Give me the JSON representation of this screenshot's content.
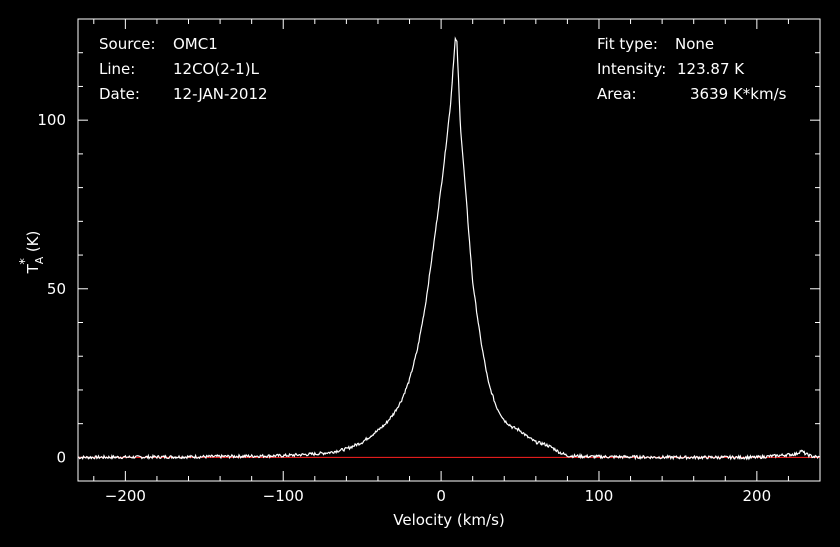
{
  "header": {
    "left": [
      {
        "key": "Source:",
        "value": "OMC1"
      },
      {
        "key": "Line:",
        "value": "12CO(2-1)L"
      },
      {
        "key": "Date:",
        "value": "12-JAN-2012"
      }
    ],
    "right": [
      {
        "key": "Fit type:",
        "value": "None"
      },
      {
        "key": "Intensity:",
        "value": "123.87 K"
      },
      {
        "key": "Area:",
        "value": "3639 K*km/s"
      }
    ]
  },
  "colors": {
    "background": "#000000",
    "axis": "#ffffff",
    "spectrum": "#ffffff",
    "baseline": "#ff2020"
  },
  "chart_data": {
    "type": "line",
    "xlabel": "Velocity (km/s)",
    "ylabel_main": "T",
    "ylabel_sup": "*",
    "ylabel_sub": "A",
    "ylabel_unit": "(K)",
    "xlim": [
      -230,
      240
    ],
    "ylim": [
      -7,
      130
    ],
    "xticks": [
      -200,
      -100,
      0,
      100,
      200
    ],
    "xtick_labels": [
      "−200",
      "−100",
      "0",
      "100",
      "200"
    ],
    "yticks": [
      0,
      50,
      100
    ],
    "ytick_labels": [
      "0",
      "50",
      "100"
    ],
    "baseline_y": 0,
    "grid": false,
    "series": [
      {
        "x": [
          -230,
          -150,
          -100,
          -80,
          -70,
          -60,
          -50,
          -40,
          -35,
          -30,
          -25,
          -20,
          -15,
          -10,
          -5,
          0,
          3,
          6,
          8,
          9,
          10,
          11,
          12,
          14,
          17,
          20,
          25,
          30,
          35,
          40,
          45,
          50,
          55,
          60,
          65,
          70,
          75,
          80,
          90,
          100,
          150,
          200,
          225,
          228,
          231,
          235,
          240
        ],
        "values": [
          0,
          0.2,
          0.5,
          1,
          1.5,
          2.5,
          4.5,
          8,
          10,
          13,
          17,
          23,
          32,
          45,
          62,
          80,
          92,
          105,
          118,
          124,
          123,
          112,
          100,
          88,
          70,
          52,
          35,
          22,
          15,
          11,
          9,
          8,
          6,
          4.5,
          4,
          3,
          1.5,
          0.5,
          0.3,
          0.2,
          0,
          0,
          1,
          2,
          1,
          0.3,
          0
        ]
      }
    ]
  }
}
